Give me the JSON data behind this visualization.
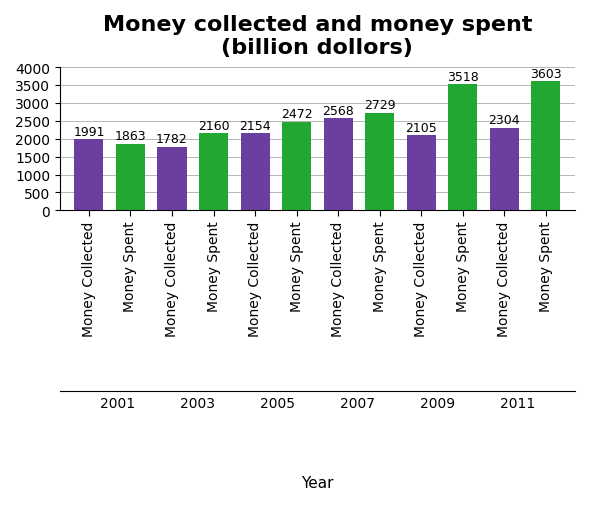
{
  "title": "Money collected and money spent\n(billion dollors)",
  "xlabel": "Year",
  "years": [
    2001,
    2003,
    2005,
    2007,
    2009,
    2011
  ],
  "money_collected": [
    1991,
    1782,
    2154,
    2568,
    2105,
    2304
  ],
  "money_spent": [
    1863,
    2160,
    2472,
    2729,
    3518,
    3603
  ],
  "bar_color_collected": "#6B3FA0",
  "bar_color_spent": "#21A832",
  "ylim": [
    0,
    4000
  ],
  "yticks": [
    0,
    500,
    1000,
    1500,
    2000,
    2500,
    3000,
    3500,
    4000
  ],
  "bar_width": 0.7,
  "title_fontsize": 16,
  "label_fontsize": 10,
  "tick_fontsize": 10,
  "annotation_fontsize": 9,
  "year_fontsize": 11
}
